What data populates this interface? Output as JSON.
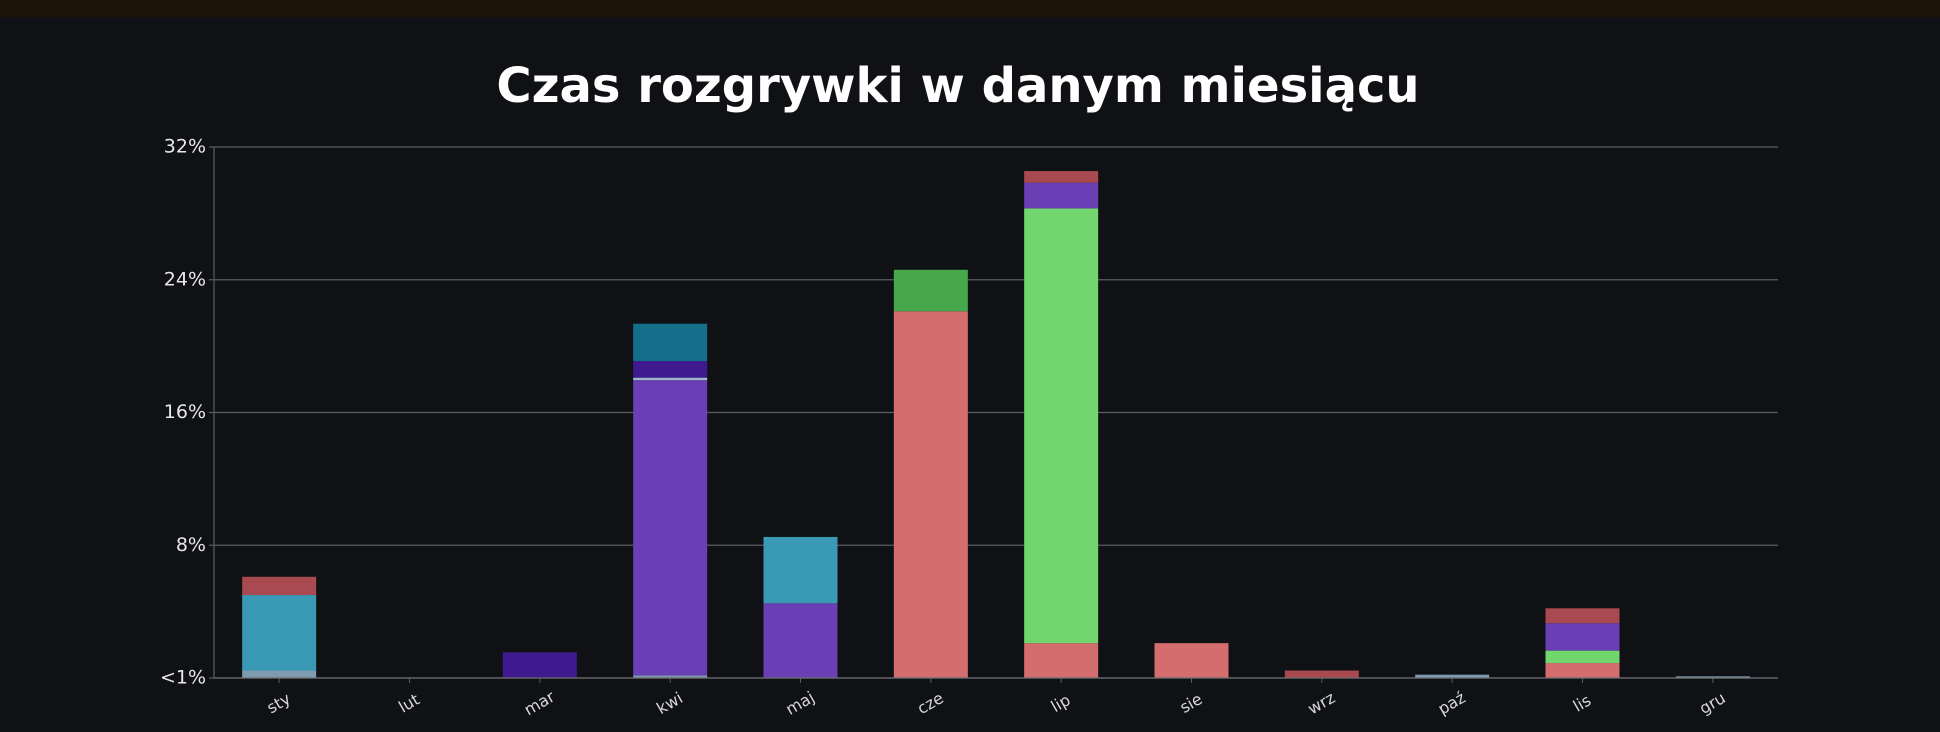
{
  "chart_data": {
    "type": "stacked-bar",
    "title": "Czas rozgrywki w danym miesiącu",
    "categories": [
      "sty",
      "lut",
      "mar",
      "kwi",
      "maj",
      "cze",
      "lip",
      "sie",
      "wrz",
      "paź",
      "lis",
      "gru"
    ],
    "series": [
      {
        "color": "#7f9bb0",
        "values": [
          0.45,
          0,
          0,
          0.15,
          0,
          0,
          0,
          0,
          0,
          0.2,
          0,
          0.1
        ]
      },
      {
        "color": "#d46e6e",
        "values": [
          0,
          0,
          0,
          0,
          0,
          22.1,
          2.1,
          2.1,
          0,
          0,
          0.9,
          0
        ]
      },
      {
        "color": "#72d66e",
        "values": [
          0,
          0,
          0,
          0,
          0,
          0,
          26.2,
          0,
          0,
          0,
          0.75,
          0
        ]
      },
      {
        "color": "#6a3fb5",
        "values": [
          0,
          0,
          0,
          17.8,
          4.5,
          0,
          1.55,
          0,
          0,
          0,
          1.65,
          0
        ]
      },
      {
        "color": "#9fb8d0",
        "values": [
          0,
          0,
          0,
          0.15,
          0,
          0,
          0,
          0,
          0,
          0,
          0,
          0
        ]
      },
      {
        "color": "#3f1a8f",
        "values": [
          0,
          0,
          1.55,
          1.0,
          0,
          0,
          0,
          0,
          0,
          0,
          0,
          0
        ]
      },
      {
        "color": "#3a9ab5",
        "values": [
          4.55,
          0,
          0,
          0,
          4.0,
          0,
          0,
          0,
          0,
          0,
          0,
          0
        ]
      },
      {
        "color": "#14708a",
        "values": [
          0,
          0,
          0,
          2.25,
          0,
          0,
          0,
          0,
          0,
          0,
          0,
          0
        ]
      },
      {
        "color": "#46a84a",
        "values": [
          0,
          0,
          0,
          0,
          0,
          2.5,
          0,
          0,
          0,
          0,
          0,
          0
        ]
      },
      {
        "color": "#a84a4f",
        "values": [
          1.1,
          0,
          0,
          0,
          0,
          0,
          0.7,
          0,
          0.45,
          0,
          0.9,
          0
        ]
      }
    ],
    "ylim": [
      0,
      32
    ],
    "yticks": [
      {
        "value": 0,
        "label": "<1%"
      },
      {
        "value": 8,
        "label": "8%"
      },
      {
        "value": 16,
        "label": "16%"
      },
      {
        "value": 24,
        "label": "24%"
      },
      {
        "value": 32,
        "label": "32%"
      }
    ],
    "grid": true
  }
}
